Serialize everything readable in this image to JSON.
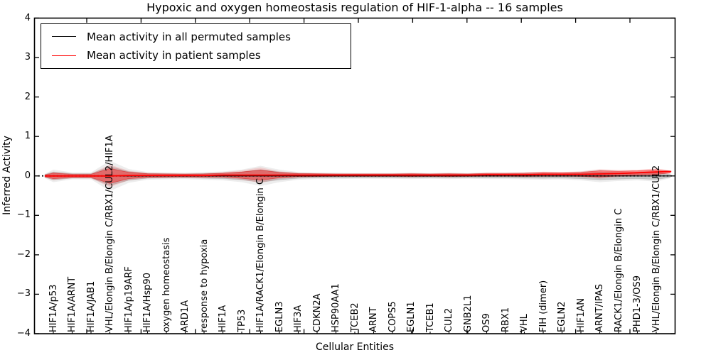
{
  "chart_data": {
    "type": "violin",
    "title": "Hypoxic and oxygen homeostasis regulation of HIF-1-alpha -- 16 samples",
    "xlabel": "Cellular Entities",
    "ylabel": "Inferred Activity",
    "ylim": [
      -4,
      4
    ],
    "yticks": [
      4,
      3,
      2,
      1,
      0,
      -1,
      -2,
      -3,
      -4
    ],
    "xlim": [
      0,
      34
    ],
    "grid": false,
    "legend_position": "upper left",
    "legend": [
      {
        "label": "Mean activity in all permuted samples",
        "color": "#000000"
      },
      {
        "label": "Mean activity in patient samples",
        "color": "#ff0000"
      }
    ],
    "zero_line": {
      "y": 0,
      "style": "dotted",
      "color": "#000000"
    },
    "categories": [
      "HIF1A/p53",
      "HIF1A/ARNT",
      "HIF1A/JAB1",
      "VHL/Elongin B/Elongin C/RBX1/CUL2/HIF1A",
      "HIF1A/p19ARF",
      "HIF1A/Hsp90",
      "oxygen homeostasis",
      "ARD1A",
      "response to hypoxia",
      "HIF1A",
      "TP53",
      "HIF1A/RACK1/Elongin B/Elongin C",
      "EGLN3",
      "HIF3A",
      "CDKN2A",
      "HSP90AA1",
      "TCEB2",
      "ARNT",
      "COPS5",
      "EGLN1",
      "TCEB1",
      "CUL2",
      "GNB2L1",
      "OS9",
      "RBX1",
      "VHL",
      "FIH (dimer)",
      "EGLN2",
      "HIF1AN",
      "ARNT/IPAS",
      "RACK1/Elongin B/Elongin C",
      "PHD1-3/OS9",
      "VHL/Elongin B/Elongin C/RBX1/CUL2"
    ],
    "series": [
      {
        "name": "Mean activity in all permuted samples",
        "color": "#000000",
        "values": [
          0,
          0,
          0,
          0,
          0,
          0,
          0,
          0,
          0,
          0,
          0,
          0,
          0,
          0,
          0,
          0,
          0,
          0,
          0,
          0,
          0,
          0,
          0,
          0,
          0,
          0,
          0,
          0,
          0,
          0,
          0,
          0,
          0
        ],
        "spread_half_width": [
          0.1,
          0.055,
          0.055,
          0.24,
          0.11,
          0.06,
          0.055,
          0.05,
          0.06,
          0.07,
          0.1,
          0.16,
          0.1,
          0.06,
          0.05,
          0.05,
          0.045,
          0.045,
          0.045,
          0.05,
          0.045,
          0.05,
          0.045,
          0.05,
          0.05,
          0.055,
          0.06,
          0.055,
          0.07,
          0.1,
          0.08,
          0.07,
          0.09
        ],
        "band_color": "#000000"
      },
      {
        "name": "Mean activity in patient samples",
        "color": "#ff0000",
        "values": [
          0,
          0,
          0,
          0,
          0.01,
          0.01,
          0.01,
          0.01,
          0.01,
          0.02,
          0.02,
          0.02,
          0.02,
          0.02,
          0.02,
          0.02,
          0.02,
          0.02,
          0.02,
          0.02,
          0.02,
          0.02,
          0.02,
          0.03,
          0.03,
          0.03,
          0.04,
          0.04,
          0.04,
          0.05,
          0.06,
          0.08,
          0.1
        ],
        "spread_half_width": [
          0.07,
          0.04,
          0.04,
          0.19,
          0.08,
          0.045,
          0.04,
          0.035,
          0.04,
          0.05,
          0.08,
          0.13,
          0.065,
          0.04,
          0.035,
          0.03,
          0.03,
          0.03,
          0.03,
          0.035,
          0.03,
          0.035,
          0.03,
          0.035,
          0.035,
          0.04,
          0.045,
          0.04,
          0.05,
          0.08,
          0.06,
          0.05,
          0.06
        ],
        "band_color": "#ff0000"
      }
    ]
  }
}
